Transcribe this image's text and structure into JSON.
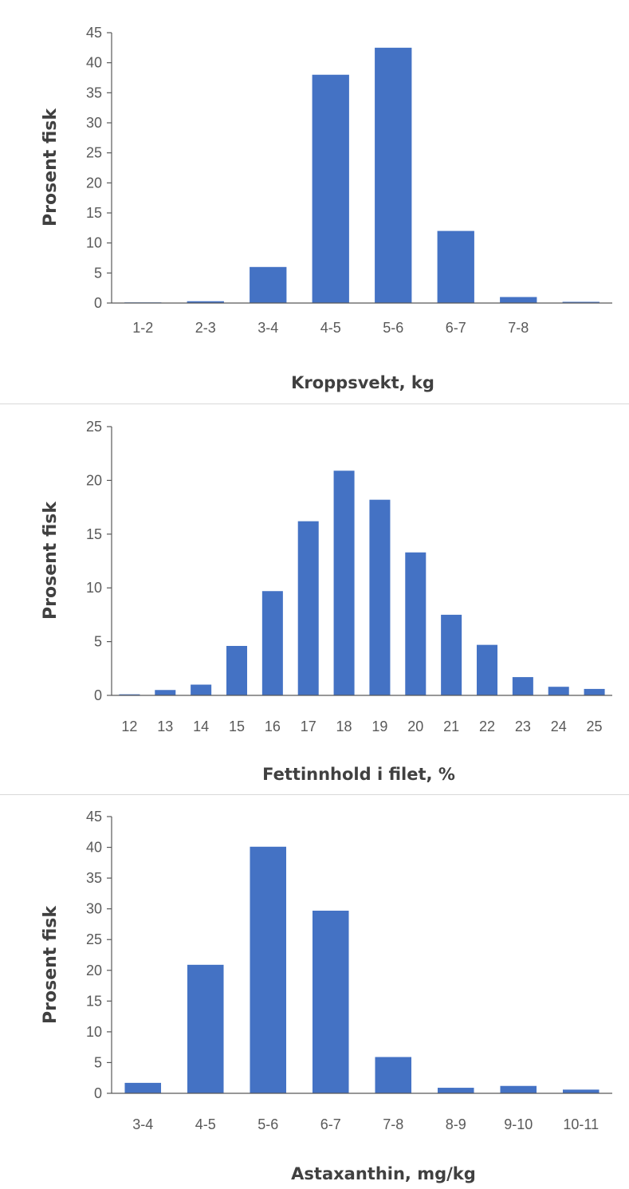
{
  "colors": {
    "bar": "#4472C4",
    "axis": "#595959",
    "text": "#595959",
    "label": "#404040"
  },
  "chart_data": [
    {
      "type": "bar",
      "categories": [
        "1-2",
        "2-3",
        "3-4",
        "4-5",
        "5-6",
        "6-7",
        "7-8",
        ""
      ],
      "values": [
        0.05,
        0.3,
        6,
        38,
        42.5,
        12,
        1,
        0.2
      ],
      "xlabel": "Kroppsvekt, kg",
      "ylabel": "Prosent fisk",
      "ylim": [
        0,
        45
      ],
      "yticks": [
        0,
        5,
        10,
        15,
        20,
        25,
        30,
        35,
        40,
        45
      ],
      "grid": false
    },
    {
      "type": "bar",
      "categories": [
        "12",
        "13",
        "14",
        "15",
        "16",
        "17",
        "18",
        "19",
        "20",
        "21",
        "22",
        "23",
        "24",
        "25"
      ],
      "values": [
        0.1,
        0.5,
        1.0,
        4.6,
        9.7,
        16.2,
        20.9,
        18.2,
        13.3,
        7.5,
        4.7,
        1.7,
        0.8,
        0.6
      ],
      "xlabel": "Fettinnhold i filet, %",
      "ylabel": "Prosent fisk",
      "ylim": [
        0,
        25
      ],
      "yticks": [
        0,
        5,
        10,
        15,
        20,
        25
      ],
      "grid": false
    },
    {
      "type": "bar",
      "categories": [
        "3-4",
        "4-5",
        "5-6",
        "6-7",
        "7-8",
        "8-9",
        "9-10",
        "10-11"
      ],
      "values": [
        1.7,
        20.9,
        40.1,
        29.7,
        5.9,
        0.9,
        1.2,
        0.6
      ],
      "xlabel": "Astaxanthin, mg/kg",
      "ylabel": "Prosent fisk",
      "ylim": [
        0,
        45
      ],
      "yticks": [
        0,
        5,
        10,
        15,
        20,
        25,
        30,
        35,
        40,
        45
      ],
      "grid": false
    }
  ]
}
